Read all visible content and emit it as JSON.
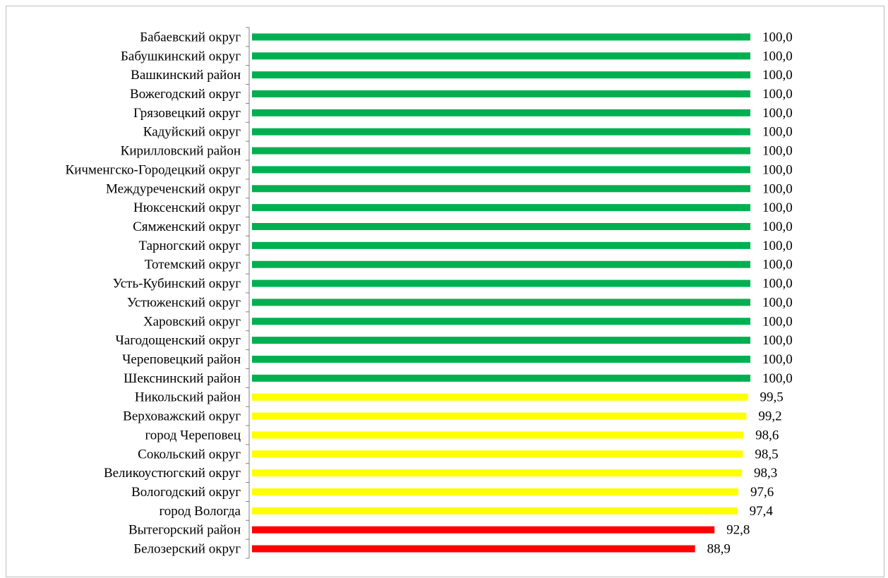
{
  "chart_data": {
    "type": "bar",
    "orientation": "horizontal",
    "title": "",
    "xlabel": "",
    "ylabel": "",
    "xlim": [
      0,
      100
    ],
    "grid": false,
    "legend": "none",
    "categories": [
      "Бабаевский округ",
      "Бабушкинский округ",
      "Вашкинский район",
      "Вожегодский округ",
      "Грязовецкий округ",
      "Кадуйский округ",
      "Кирилловский район",
      "Кичменгско-Городецкий округ",
      "Междуреченский округ",
      "Нюксенский округ",
      "Сямженский округ",
      "Тарногский округ",
      "Тотемский округ",
      "Усть-Кубинский округ",
      "Устюженский округ",
      "Харовский округ",
      "Чагодощенский округ",
      "Череповецкий район",
      "Шекснинский район",
      "Никольский район",
      "Верховажский округ",
      "город Череповец",
      "Сокольский округ",
      "Великоустюгский округ",
      "Вологодский округ",
      "город Вологда",
      "Вытегорский район",
      "Белозерский округ"
    ],
    "values": [
      100.0,
      100.0,
      100.0,
      100.0,
      100.0,
      100.0,
      100.0,
      100.0,
      100.0,
      100.0,
      100.0,
      100.0,
      100.0,
      100.0,
      100.0,
      100.0,
      100.0,
      100.0,
      100.0,
      99.5,
      99.2,
      98.6,
      98.5,
      98.3,
      97.6,
      97.4,
      92.8,
      88.9
    ],
    "value_labels": [
      "100,0",
      "100,0",
      "100,0",
      "100,0",
      "100,0",
      "100,0",
      "100,0",
      "100,0",
      "100,0",
      "100,0",
      "100,0",
      "100,0",
      "100,0",
      "100,0",
      "100,0",
      "100,0",
      "100,0",
      "100,0",
      "100,0",
      "99,5",
      "99,2",
      "98,6",
      "98,5",
      "98,3",
      "97,6",
      "97,4",
      "92,8",
      "88,9"
    ],
    "bar_colors": [
      "#00b050",
      "#00b050",
      "#00b050",
      "#00b050",
      "#00b050",
      "#00b050",
      "#00b050",
      "#00b050",
      "#00b050",
      "#00b050",
      "#00b050",
      "#00b050",
      "#00b050",
      "#00b050",
      "#00b050",
      "#00b050",
      "#00b050",
      "#00b050",
      "#00b050",
      "#ffff00",
      "#ffff00",
      "#ffff00",
      "#ffff00",
      "#ffff00",
      "#ffff00",
      "#ffff00",
      "#ff0000",
      "#ff0000"
    ],
    "colors": {
      "high": "#00b050",
      "medium": "#ffff00",
      "low": "#ff0000",
      "axis": "#808080"
    }
  }
}
